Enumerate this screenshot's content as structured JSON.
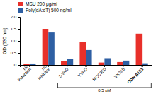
{
  "chart_data": {
    "type": "bar",
    "ylabel": "OD (630 nm)",
    "categories": [
      "No\ninduction",
      "No\ninhibitor",
      "Z-VAD",
      "YVAD",
      "MCC950",
      "VX765",
      "ODN A151"
    ],
    "series": [
      {
        "name": "MSU 200 μg/ml",
        "color": "#e8302a",
        "values": [
          0.05,
          1.5,
          0.17,
          0.95,
          0.1,
          0.12,
          1.3
        ]
      },
      {
        "name": "Poly(dA:dT) 500 ng/ml",
        "color": "#2e5fa3",
        "values": [
          0.06,
          1.35,
          0.25,
          0.62,
          0.28,
          0.18,
          0.07
        ]
      }
    ],
    "ylim": [
      0,
      2.0
    ],
    "yticks": [
      0,
      0.5,
      {
        "value": 1.0,
        "label": "1.0"
      },
      1.5,
      {
        "value": 2.0,
        "label": "2.0"
      }
    ],
    "annotations": [
      {
        "text": "0.5 μM",
        "from": "Z-VAD",
        "to": "ODN A151"
      }
    ],
    "legend": "upper left",
    "grid": false
  }
}
